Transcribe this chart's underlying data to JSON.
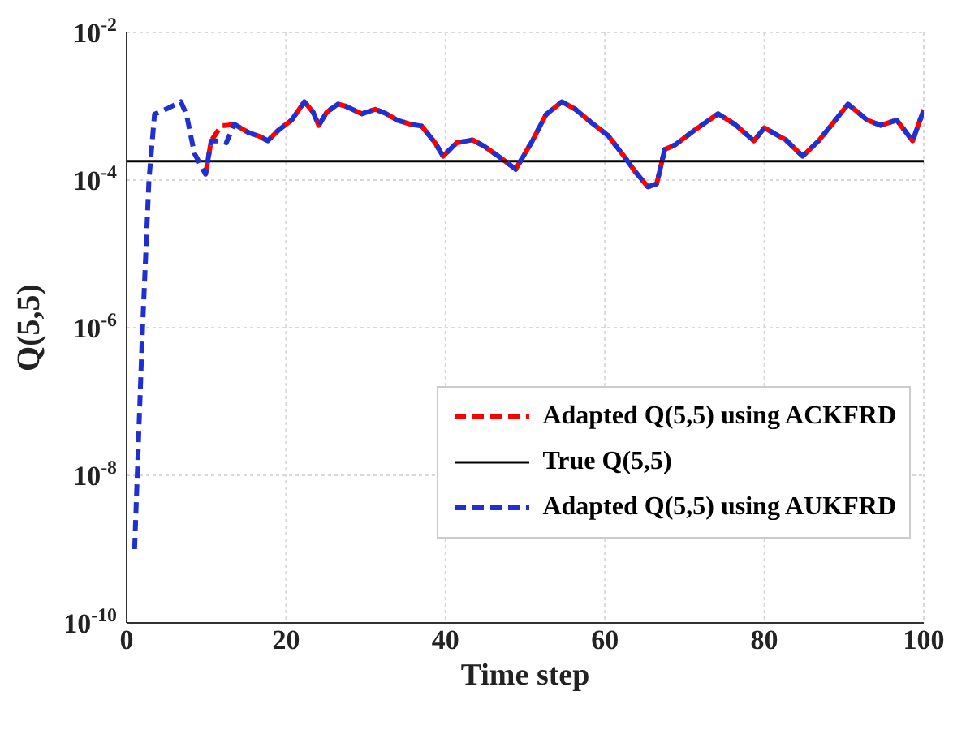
{
  "chart_data": {
    "type": "line",
    "xlabel": "Time step",
    "ylabel": "Q(5,5)",
    "log": "y",
    "xlim": [
      0,
      100
    ],
    "xticks": [
      0,
      20,
      40,
      60,
      80,
      100
    ],
    "ylim": [
      1e-10,
      0.01
    ],
    "yticks": [
      {
        "value": 1e-10,
        "label": "10$^{-10}$"
      },
      {
        "value": 1e-08,
        "label": "10$^{-8}$"
      },
      {
        "value": 1e-06,
        "label": "10$^{-6}$"
      },
      {
        "value": 0.0001,
        "label": "10$^{-4}$"
      },
      {
        "value": 0.01,
        "label": "10$^{-2}$"
      }
    ],
    "grid": true,
    "legend": "right",
    "marker": "none",
    "series": [
      {
        "name": "Adapted Q(5,5) using ACKFRD",
        "color": "#ff0000",
        "line_style": "dashed",
        "x": [
          9.9,
          10.6,
          11.9,
          12.5,
          13.5,
          15.3,
          16.7,
          17.7,
          19,
          20.7,
          22.3,
          23.4,
          24.1,
          25.1,
          26.5,
          27.5,
          29.5,
          31.2,
          32.6,
          33.9,
          35.6,
          37,
          38.7,
          39.7,
          41.4,
          43.4,
          44.8,
          47.2,
          48.8,
          50.9,
          52.6,
          54.6,
          56.3,
          58.3,
          60.4,
          62.4,
          63.8,
          65.4,
          66.5,
          67.5,
          68.8,
          71.2,
          74.2,
          76.3,
          78.7,
          80,
          82.7,
          84.8,
          86.8,
          88.5,
          90.5,
          92.9,
          94.6,
          96.6,
          98.6,
          100
        ],
        "values": [
          0.00012,
          0.00034,
          0.00055,
          0.00055,
          0.00057,
          0.00044,
          0.00039,
          0.00034,
          0.00047,
          0.00065,
          0.00115,
          0.00083,
          0.00055,
          0.00083,
          0.00107,
          0.001,
          0.00079,
          0.00091,
          0.00079,
          0.00065,
          0.00057,
          0.00054,
          0.00032,
          0.00021,
          0.00032,
          0.00035,
          0.00029,
          0.00019,
          0.00014,
          0.00034,
          0.00077,
          0.00115,
          0.00091,
          0.0006,
          0.0004,
          0.00021,
          0.00013,
          8.1e-05,
          8.9e-05,
          0.00026,
          0.0003,
          0.00047,
          0.00079,
          0.00057,
          0.00034,
          0.00051,
          0.00035,
          0.00021,
          0.00034,
          0.00057,
          0.00107,
          0.00065,
          0.00055,
          0.00065,
          0.00034,
          0.0009
        ]
      },
      {
        "name": "True Q(5,5)",
        "color": "#000000",
        "line_style": "solid",
        "x": [
          0,
          100
        ],
        "values": [
          0.00018,
          0.00018
        ]
      },
      {
        "name": "Adapted Q(5,5) using AUKFRD",
        "color": "#1f2fd0",
        "line_style": "dashed",
        "x": [
          1,
          2,
          2.8,
          3.5,
          5.1,
          6.8,
          7.5,
          8.5,
          9.9,
          10.6,
          11.9,
          12.5,
          13.5,
          15.3,
          16.7,
          17.7,
          19,
          20.7,
          22.3,
          23.4,
          24.1,
          25.1,
          26.5,
          27.5,
          29.5,
          31.2,
          32.6,
          33.9,
          35.6,
          37,
          38.7,
          39.7,
          41.4,
          43.4,
          44.8,
          47.2,
          48.8,
          50.9,
          52.6,
          54.6,
          56.3,
          58.3,
          60.4,
          62.4,
          63.8,
          65.4,
          66.5,
          67.5,
          68.8,
          71.2,
          74.2,
          76.3,
          78.7,
          80,
          82.7,
          84.8,
          86.8,
          88.5,
          90.5,
          92.9,
          94.6,
          96.6,
          98.6,
          100
        ],
        "values": [
          1e-09,
          1e-06,
          0.0001,
          0.00078,
          0.00093,
          0.00115,
          0.00078,
          0.00023,
          0.00012,
          0.00034,
          0.00034,
          0.00032,
          0.00057,
          0.00044,
          0.00039,
          0.00034,
          0.00047,
          0.00065,
          0.00115,
          0.00083,
          0.00055,
          0.00083,
          0.00107,
          0.001,
          0.00079,
          0.00091,
          0.00079,
          0.00065,
          0.00057,
          0.00054,
          0.00032,
          0.00021,
          0.00032,
          0.00035,
          0.00029,
          0.00019,
          0.00014,
          0.00034,
          0.00077,
          0.00115,
          0.00091,
          0.0006,
          0.0004,
          0.00021,
          0.00013,
          8.1e-05,
          8.9e-05,
          0.00026,
          0.0003,
          0.00047,
          0.00079,
          0.00057,
          0.00034,
          0.00051,
          0.00035,
          0.00021,
          0.00034,
          0.00057,
          0.00107,
          0.00065,
          0.00055,
          0.00065,
          0.00034,
          0.0009
        ]
      }
    ]
  }
}
